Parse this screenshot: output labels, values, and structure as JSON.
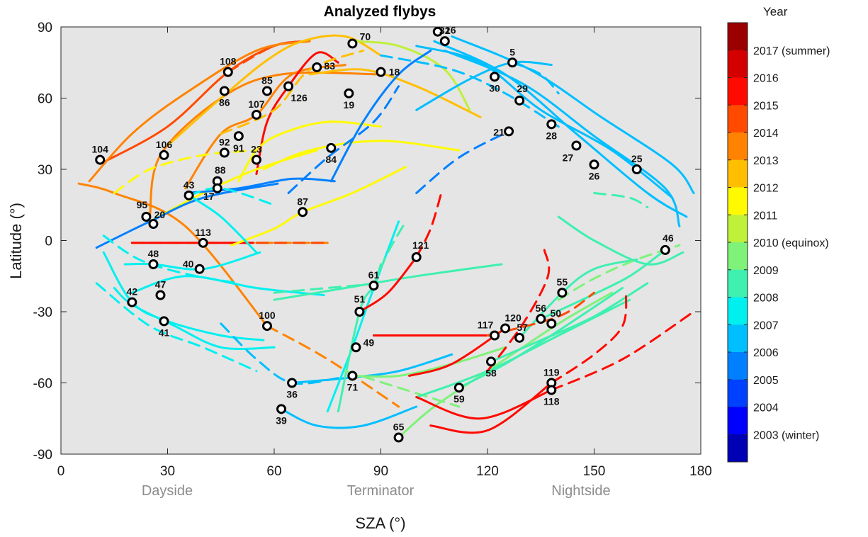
{
  "chart_data": {
    "type": "scatter",
    "title": "Analyzed flybys",
    "xlabel": "SZA (°)",
    "ylabel": "Latitude (°)",
    "xlim": [
      0,
      180
    ],
    "ylim": [
      -90,
      90
    ],
    "xticks": [
      "0",
      "30",
      "60",
      "90",
      "120",
      "150",
      "180"
    ],
    "yticks": [
      "90",
      "60",
      "30",
      "0",
      "-30",
      "-60",
      "-90"
    ],
    "region_labels": [
      {
        "text": "Dayside",
        "x": 30
      },
      {
        "text": "Terminator",
        "x": 90
      },
      {
        "text": "Nightside",
        "x": 135
      }
    ],
    "colorbar": {
      "title": "Year",
      "labels": [
        "2017 (summer)",
        "2016",
        "2015",
        "2014",
        "2013",
        "2012",
        "2011",
        "2010 (equinox)",
        "2009",
        "2008",
        "2007",
        "2006",
        "2005",
        "2004",
        "2003 (winter)"
      ],
      "colors": [
        "#9b0000",
        "#d40000",
        "#ff0a00",
        "#ff4a00",
        "#ff8300",
        "#ffbf00",
        "#fffa00",
        "#bff03a",
        "#7ff27a",
        "#3ff0b0",
        "#00f0f0",
        "#00bfff",
        "#0080ff",
        "#0040ff",
        "#0000ff",
        "#0000b4"
      ],
      "colormap": "jet",
      "grid": false,
      "legend": "right"
    },
    "flybys": [
      {
        "id": "70",
        "x": 82,
        "y": 83,
        "year": 2011
      },
      {
        "id": "16",
        "x": 106,
        "y": 88,
        "year": 2006
      },
      {
        "id": "32",
        "x": 108,
        "y": 84,
        "year": 2007
      },
      {
        "id": "5",
        "x": 127,
        "y": 75,
        "year": 2005
      },
      {
        "id": "108",
        "x": 47,
        "y": 71,
        "year": 2015
      },
      {
        "id": "83",
        "x": 72,
        "y": 73,
        "year": 2013
      },
      {
        "id": "18",
        "x": 90,
        "y": 71,
        "year": 2006
      },
      {
        "id": "30",
        "x": 122,
        "y": 69,
        "year": 2007
      },
      {
        "id": "85",
        "x": 58,
        "y": 63,
        "year": 2013
      },
      {
        "id": "86",
        "x": 46,
        "y": 63,
        "year": 2013
      },
      {
        "id": "126",
        "x": 64,
        "y": 65,
        "year": 2016
      },
      {
        "id": "19",
        "x": 81,
        "y": 62,
        "year": 2006
      },
      {
        "id": "29",
        "x": 129,
        "y": 59,
        "year": 2007
      },
      {
        "id": "107",
        "x": 55,
        "y": 53,
        "year": 2014
      },
      {
        "id": "21",
        "x": 126,
        "y": 46,
        "year": 2006
      },
      {
        "id": "28",
        "x": 138,
        "y": 49,
        "year": 2007
      },
      {
        "id": "104",
        "x": 11,
        "y": 34,
        "year": 2015
      },
      {
        "id": "106",
        "x": 29,
        "y": 36,
        "year": 2014
      },
      {
        "id": "92",
        "x": 46,
        "y": 37,
        "year": 2013
      },
      {
        "id": "91",
        "x": 50,
        "y": 44,
        "year": 2013
      },
      {
        "id": "23",
        "x": 55,
        "y": 34,
        "year": 2006
      },
      {
        "id": "84",
        "x": 76,
        "y": 39,
        "year": 2012
      },
      {
        "id": "27",
        "x": 145,
        "y": 40,
        "year": 2007
      },
      {
        "id": "25",
        "x": 162,
        "y": 30,
        "year": 2007
      },
      {
        "id": "26",
        "x": 150,
        "y": 32,
        "year": 2007
      },
      {
        "id": "88",
        "x": 44,
        "y": 25,
        "year": 2013
      },
      {
        "id": "17",
        "x": 44,
        "y": 22,
        "year": 2006
      },
      {
        "id": "43",
        "x": 36,
        "y": 19,
        "year": 2008
      },
      {
        "id": "87",
        "x": 68,
        "y": 12,
        "year": 2012
      },
      {
        "id": "95",
        "x": 24,
        "y": 10,
        "year": 2013
      },
      {
        "id": "20",
        "x": 26,
        "y": 7,
        "year": 2006
      },
      {
        "id": "113",
        "x": 40,
        "y": -1,
        "year": 2015
      },
      {
        "id": "121",
        "x": 100,
        "y": -7,
        "year": 2016
      },
      {
        "id": "46",
        "x": 170,
        "y": -4,
        "year": 2008
      },
      {
        "id": "48",
        "x": 26,
        "y": -10,
        "year": 2008
      },
      {
        "id": "40",
        "x": 39,
        "y": -12,
        "year": 2007
      },
      {
        "id": "61",
        "x": 88,
        "y": -19,
        "year": 2009
      },
      {
        "id": "55",
        "x": 141,
        "y": -22,
        "year": 2009
      },
      {
        "id": "42",
        "x": 20,
        "y": -26,
        "year": 2008
      },
      {
        "id": "47",
        "x": 28,
        "y": -23,
        "year": 2008
      },
      {
        "id": "51",
        "x": 84,
        "y": -30,
        "year": 2009
      },
      {
        "id": "41",
        "x": 29,
        "y": -34,
        "year": 2008
      },
      {
        "id": "100",
        "x": 58,
        "y": -36,
        "year": 2014
      },
      {
        "id": "56",
        "x": 135,
        "y": -33,
        "year": 2009
      },
      {
        "id": "50",
        "x": 138,
        "y": -35,
        "year": 2009
      },
      {
        "id": "117",
        "x": 122,
        "y": -40,
        "year": 2016
      },
      {
        "id": "120",
        "x": 125,
        "y": -37,
        "year": 2016
      },
      {
        "id": "57",
        "x": 129,
        "y": -41,
        "year": 2009
      },
      {
        "id": "49",
        "x": 83,
        "y": -45,
        "year": 2008
      },
      {
        "id": "58",
        "x": 121,
        "y": -51,
        "year": 2009
      },
      {
        "id": "71",
        "x": 82,
        "y": -57,
        "year": 2009
      },
      {
        "id": "36",
        "x": 65,
        "y": -60,
        "year": 2007
      },
      {
        "id": "59",
        "x": 112,
        "y": -62,
        "year": 2009
      },
      {
        "id": "119",
        "x": 138,
        "y": -60,
        "year": 2016
      },
      {
        "id": "118",
        "x": 138,
        "y": -63,
        "year": 2016
      },
      {
        "id": "39",
        "x": 62,
        "y": -71,
        "year": 2007
      },
      {
        "id": "65",
        "x": 95,
        "y": -83,
        "year": 2009
      }
    ]
  }
}
